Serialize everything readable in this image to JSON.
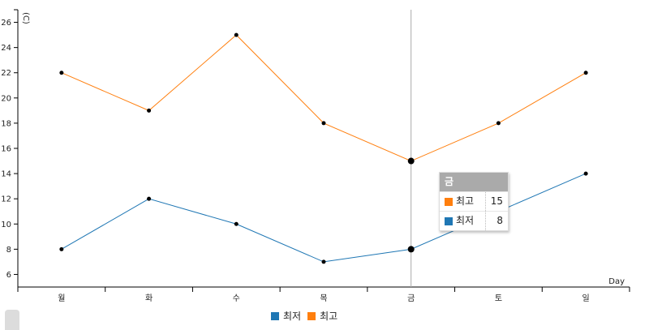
{
  "chart_data": {
    "type": "line",
    "categories": [
      "월",
      "화",
      "수",
      "목",
      "금",
      "토",
      "일"
    ],
    "series": [
      {
        "name": "최저",
        "color": "#1f77b4",
        "values": [
          8,
          12,
          10,
          7,
          8,
          11,
          14
        ]
      },
      {
        "name": "최고",
        "color": "#ff7f0e",
        "values": [
          22,
          19,
          25,
          18,
          15,
          18,
          22
        ]
      }
    ],
    "xlabel": "Day",
    "ylabel": "(C)",
    "ylim": [
      5,
      27
    ],
    "yticks": [
      6,
      8,
      10,
      12,
      14,
      16,
      18,
      20,
      22,
      24,
      26
    ],
    "grid": false,
    "legend_position": "bottom"
  },
  "tooltip": {
    "title": "금",
    "rows": [
      {
        "name": "최고",
        "value": "15",
        "color": "#ff7f0e"
      },
      {
        "name": "최저",
        "value": "8",
        "color": "#1f77b4"
      }
    ]
  },
  "focus_index": 4
}
